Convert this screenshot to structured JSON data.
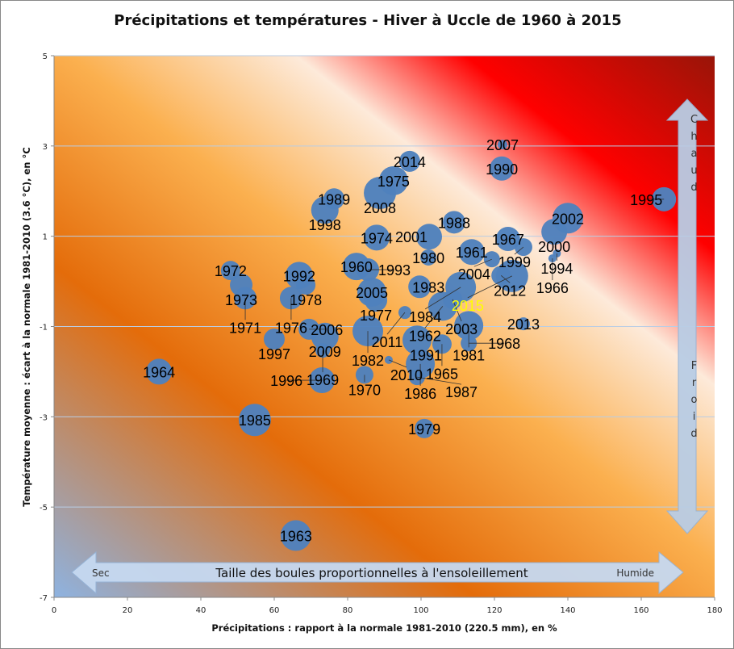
{
  "chart_data": {
    "type": "scatter",
    "subtype": "bubble",
    "title": "Précipitations et températures - Hiver à Uccle de 1960 à 2015",
    "xlabel": "Précipitations : rapport à la normale 1981-2010 (220.5 mm), en %",
    "ylabel": "Température moyenne : écart à  la normale 1981-2010 (3.6 °C), en °C",
    "xlim": [
      0,
      180
    ],
    "ylim": [
      -7,
      5
    ],
    "xticks": [
      "0",
      "20",
      "40",
      "60",
      "80",
      "100",
      "120",
      "140",
      "160",
      "180"
    ],
    "yticks": [
      "-7",
      "-5",
      "-3",
      "-1",
      "1",
      "3",
      "5"
    ],
    "grid": "horizontal",
    "bubble_size_meaning": "Taille des boules proportionnelles à l'ensoleillement",
    "bubble_color": "#4f81bd",
    "highlight_label_color": "#ffff00",
    "background_gradient": [
      "#8db3e2",
      "#e46c0a",
      "#fbb04f",
      "#fdeada",
      "#ff0000",
      "#7f1a0a"
    ],
    "arrows": {
      "vertical": {
        "top": "Chaud",
        "bottom": "Froid"
      },
      "horizontal": {
        "left": "Sec",
        "center": "Taille des boules proportionnelles à l'ensoleillement",
        "right": "Humide"
      }
    },
    "points": [
      {
        "year": "1960",
        "x": 82.4,
        "y": 0.33,
        "size": 17
      },
      {
        "year": "1961",
        "x": 113.8,
        "y": 0.65,
        "size": 16
      },
      {
        "year": "1962",
        "x": 105.9,
        "y": -0.55,
        "size": 18
      },
      {
        "year": "1963",
        "x": 65.9,
        "y": -5.63,
        "size": 19
      },
      {
        "year": "1964",
        "x": 28.6,
        "y": -2.0,
        "size": 16
      },
      {
        "year": "1965",
        "x": 105.7,
        "y": -1.39,
        "size": 12
      },
      {
        "year": "1966",
        "x": 135.8,
        "y": 0.51,
        "size": 5
      },
      {
        "year": "1967",
        "x": 123.7,
        "y": 0.94,
        "size": 15
      },
      {
        "year": "1968",
        "x": 113.0,
        "y": -1.37,
        "size": 10
      },
      {
        "year": "1969",
        "x": 73.2,
        "y": -1.53,
        "size": 9
      },
      {
        "year": "1970",
        "x": 84.6,
        "y": -2.07,
        "size": 11
      },
      {
        "year": "1971",
        "x": 52.1,
        "y": -0.37,
        "size": 14
      },
      {
        "year": "1972",
        "x": 48.1,
        "y": 0.24,
        "size": 12
      },
      {
        "year": "1973",
        "x": 51.0,
        "y": -0.08,
        "size": 14
      },
      {
        "year": "1974",
        "x": 87.9,
        "y": 0.97,
        "size": 16
      },
      {
        "year": "1975",
        "x": 92.5,
        "y": 2.23,
        "size": 18
      },
      {
        "year": "1976",
        "x": 64.6,
        "y": -0.37,
        "size": 14
      },
      {
        "year": "1977",
        "x": 87.7,
        "y": -0.42,
        "size": 14
      },
      {
        "year": "1978",
        "x": 68.6,
        "y": -0.08,
        "size": 12
      },
      {
        "year": "1979",
        "x": 100.9,
        "y": -3.26,
        "size": 12
      },
      {
        "year": "1980",
        "x": 102.0,
        "y": 0.53,
        "size": 10
      },
      {
        "year": "1981",
        "x": 113.0,
        "y": -0.98,
        "size": 18
      },
      {
        "year": "1982",
        "x": 85.5,
        "y": -1.1,
        "size": 19
      },
      {
        "year": "1983",
        "x": 99.6,
        "y": -0.12,
        "size": 14
      },
      {
        "year": "1984",
        "x": 110.8,
        "y": -0.13,
        "size": 19
      },
      {
        "year": "1985",
        "x": 54.7,
        "y": -3.07,
        "size": 20
      },
      {
        "year": "1986",
        "x": 99.8,
        "y": -1.83,
        "size": 18
      },
      {
        "year": "1987",
        "x": 98.9,
        "y": -2.12,
        "size": 10
      },
      {
        "year": "1988",
        "x": 109.0,
        "y": 1.31,
        "size": 14
      },
      {
        "year": "1989",
        "x": 76.3,
        "y": 1.83,
        "size": 13
      },
      {
        "year": "1990",
        "x": 122.0,
        "y": 2.5,
        "size": 15
      },
      {
        "year": "1991",
        "x": 98.9,
        "y": -1.3,
        "size": 18
      },
      {
        "year": "1992",
        "x": 66.8,
        "y": 0.13,
        "size": 17
      },
      {
        "year": "1993",
        "x": 85.5,
        "y": 0.26,
        "size": 14
      },
      {
        "year": "1994",
        "x": 137.0,
        "y": 0.62,
        "size": 5
      },
      {
        "year": "1995",
        "x": 166.2,
        "y": 1.82,
        "size": 15
      },
      {
        "year": "1996",
        "x": 73.0,
        "y": -2.19,
        "size": 16
      },
      {
        "year": "1997",
        "x": 60.0,
        "y": -1.28,
        "size": 13
      },
      {
        "year": "1998",
        "x": 73.8,
        "y": 1.58,
        "size": 17
      },
      {
        "year": "1999",
        "x": 127.9,
        "y": 0.76,
        "size": 11
      },
      {
        "year": "2000",
        "x": 136.3,
        "y": 1.1,
        "size": 16
      },
      {
        "year": "2001",
        "x": 102.2,
        "y": 0.99,
        "size": 16
      },
      {
        "year": "2002",
        "x": 140.0,
        "y": 1.4,
        "size": 19
      },
      {
        "year": "2003",
        "x": 108.6,
        "y": -0.4,
        "size": 12
      },
      {
        "year": "2004",
        "x": 119.3,
        "y": 0.49,
        "size": 10
      },
      {
        "year": "2005",
        "x": 86.6,
        "y": -0.24,
        "size": 18
      },
      {
        "year": "2006",
        "x": 69.5,
        "y": -1.06,
        "size": 13
      },
      {
        "year": "2007",
        "x": 122.2,
        "y": 3.03,
        "size": 6
      },
      {
        "year": "2008",
        "x": 88.8,
        "y": 1.96,
        "size": 20
      },
      {
        "year": "2009",
        "x": 73.8,
        "y": -1.22,
        "size": 17
      },
      {
        "year": "2010",
        "x": 91.2,
        "y": -1.74,
        "size": 5
      },
      {
        "year": "2011",
        "x": 95.6,
        "y": -0.69,
        "size": 8
      },
      {
        "year": "2012",
        "x": 121.8,
        "y": 0.13,
        "size": 12
      },
      {
        "year": "2013",
        "x": 127.9,
        "y": -0.94,
        "size": 8
      },
      {
        "year": "2014",
        "x": 96.9,
        "y": 2.66,
        "size": 13
      },
      {
        "year": "2015",
        "x": 124.8,
        "y": 0.12,
        "size": 20,
        "highlight": true
      }
    ]
  }
}
